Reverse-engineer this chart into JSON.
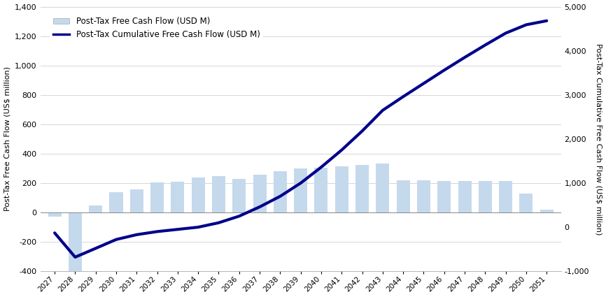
{
  "years": [
    2027,
    2028,
    2029,
    2030,
    2031,
    2032,
    2033,
    2034,
    2035,
    2036,
    2037,
    2038,
    2039,
    2040,
    2041,
    2042,
    2043,
    2044,
    2045,
    2046,
    2047,
    2048,
    2049,
    2050,
    2051
  ],
  "bar_values": [
    -30,
    -420,
    50,
    140,
    155,
    205,
    210,
    240,
    245,
    230,
    255,
    280,
    300,
    305,
    315,
    325,
    335,
    220,
    220,
    215,
    215,
    215,
    215,
    130,
    20
  ],
  "cum_right": [
    -130,
    -680,
    -480,
    -280,
    -170,
    -100,
    -50,
    0,
    100,
    250,
    460,
    700,
    1000,
    1360,
    1750,
    2180,
    2650,
    2960,
    3260,
    3560,
    3850,
    4130,
    4400,
    4590,
    4680
  ],
  "bar_color": "#c5d9ed",
  "line_color": "#00008B",
  "left_ylim": [
    -400,
    1400
  ],
  "right_ylim": [
    -1000,
    5000
  ],
  "left_yticks": [
    -400,
    -200,
    0,
    200,
    400,
    600,
    800,
    1000,
    1200,
    1400
  ],
  "right_yticks": [
    -1000,
    0,
    1000,
    2000,
    3000,
    4000,
    5000
  ],
  "ylabel_left": "Post-Tax Free Cash Flow (US$ million)",
  "ylabel_right": "Post-Tax Cumulative Free Cash Flow (US$ million)",
  "legend_bar": "Post-Tax Free Cash Flow (USD M)",
  "legend_line": "Post-Tax Cumulative Free Cash Flow (USD M)",
  "bg_color": "#ffffff",
  "grid_color": "#d0d0d0",
  "line_width": 3.0,
  "bar_width": 0.65
}
